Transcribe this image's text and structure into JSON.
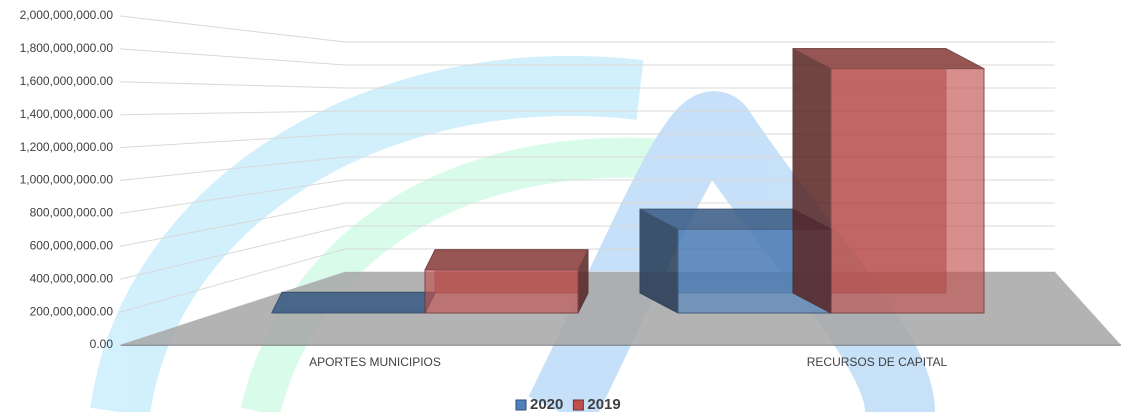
{
  "chart_data": {
    "type": "bar3d",
    "categories": [
      "APORTES MUNICIPIOS",
      "RECURSOS DE CAPITAL"
    ],
    "series": [
      {
        "name": "2020",
        "color": "#4f81bd",
        "values": [
          5000000,
          620000000
        ]
      },
      {
        "name": "2019",
        "color": "#c0504d",
        "values": [
          320000000,
          1810000000
        ]
      }
    ],
    "ylim": [
      0,
      2000000000
    ],
    "yticks": [
      {
        "value": 0,
        "label": "0.00"
      },
      {
        "value": 200000000,
        "label": "200,000,000.00"
      },
      {
        "value": 400000000,
        "label": "400,000,000.00"
      },
      {
        "value": 600000000,
        "label": "600,000,000.00"
      },
      {
        "value": 800000000,
        "label": "800,000,000.00"
      },
      {
        "value": 1000000000,
        "label": "1,000,000,000.00"
      },
      {
        "value": 1200000000,
        "label": "1,200,000,000.00"
      },
      {
        "value": 1400000000,
        "label": "1,400,000,000.00"
      },
      {
        "value": 1600000000,
        "label": "1,600,000,000.00"
      },
      {
        "value": 1800000000,
        "label": "1,800,000,000.00"
      },
      {
        "value": 2000000000,
        "label": "2,000,000,000.00"
      }
    ],
    "grid": true,
    "legend": "bottom"
  }
}
